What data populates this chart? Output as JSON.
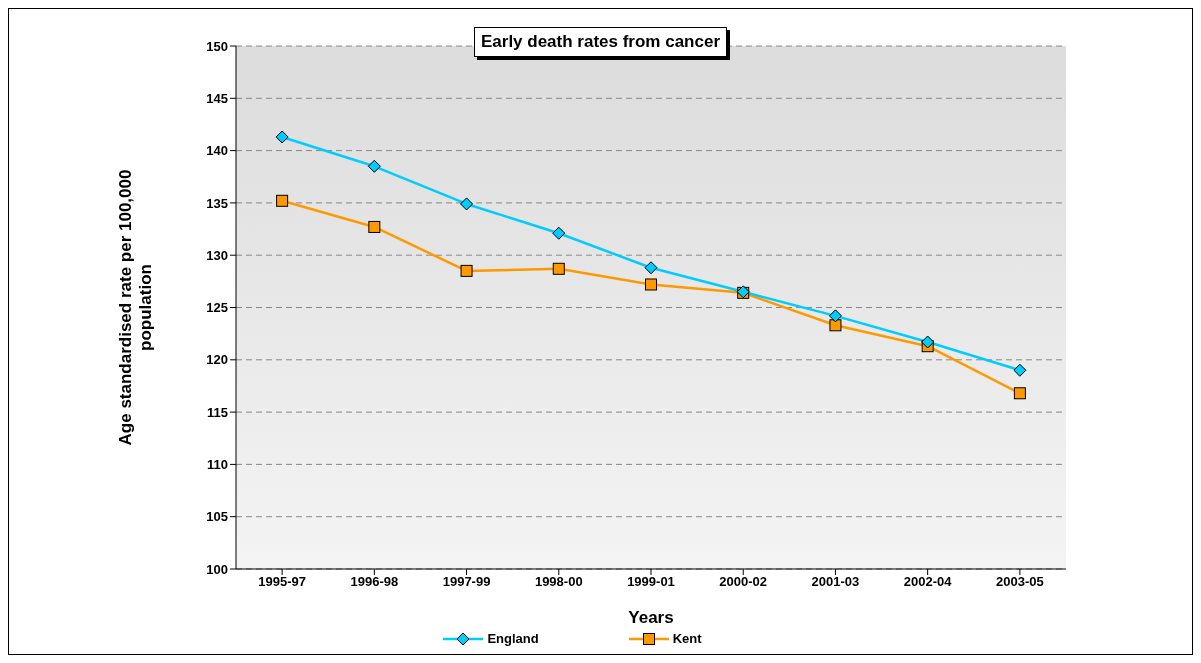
{
  "chart_data": {
    "type": "line",
    "title": "Early death rates from cancer",
    "xlabel": "Years",
    "ylabel": "Age standardised rate per 100,000 population",
    "categories": [
      "1995-97",
      "1996-98",
      "1997-99",
      "1998-00",
      "1999-01",
      "2000-02",
      "2001-03",
      "2002-04",
      "2003-05"
    ],
    "series": [
      {
        "name": "England",
        "color": "#00ccff",
        "marker": "diamond",
        "values": [
          141.3,
          138.5,
          134.9,
          132.1,
          128.8,
          126.5,
          124.2,
          121.7,
          119.0
        ]
      },
      {
        "name": "Kent",
        "color": "#ff9900",
        "marker": "square",
        "values": [
          135.2,
          132.7,
          128.5,
          128.7,
          127.2,
          126.4,
          123.3,
          121.3,
          116.8
        ]
      }
    ],
    "ylim": [
      100,
      150
    ],
    "yticks": [
      100,
      105,
      110,
      115,
      120,
      125,
      130,
      135,
      140,
      145,
      150
    ],
    "grid": "y",
    "legend": "bottom",
    "line_style": "solid"
  }
}
